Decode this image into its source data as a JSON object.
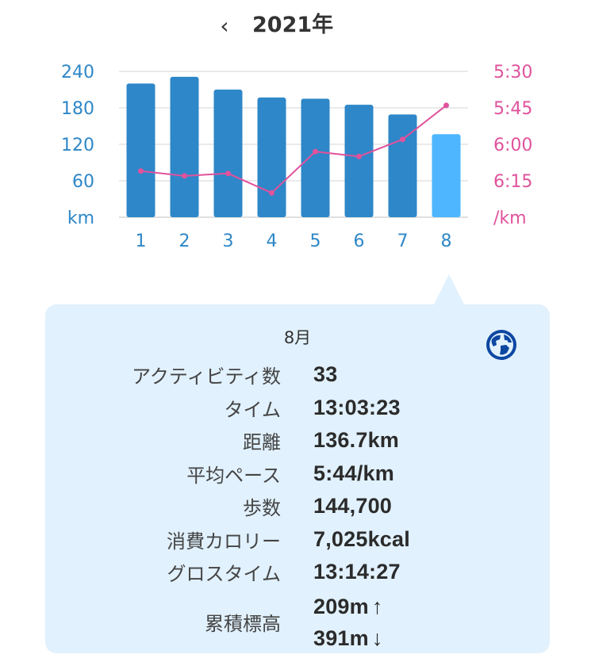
{
  "header": {
    "back_icon": "‹",
    "title": "2021年"
  },
  "colors": {
    "bar": "#2e87c8",
    "bar_selected": "#4db6ff",
    "line": "#e0529c",
    "left_axis": "#2e87c8",
    "right_axis": "#e0529c",
    "panel": "#e1f1fd"
  },
  "chart_data": {
    "type": "bar",
    "categories": [
      "1",
      "2",
      "3",
      "4",
      "5",
      "6",
      "7",
      "8"
    ],
    "series": [
      {
        "name": "km",
        "values": [
          220,
          231,
          210,
          197,
          195,
          185,
          169,
          136.7
        ]
      },
      {
        "name": "/km",
        "values": [
          "6:11",
          "6:13",
          "6:12",
          "6:20",
          "6:03",
          "6:05",
          "5:58",
          "5:44"
        ],
        "seconds": [
          371,
          373,
          372,
          380,
          363,
          365,
          358,
          344
        ]
      }
    ],
    "left_axis": {
      "unit": "km",
      "ticks": [
        "240",
        "180",
        "120",
        "60"
      ],
      "ylim": [
        0,
        240
      ]
    },
    "right_axis": {
      "unit": "/km",
      "ticks": [
        "5:30",
        "5:45",
        "6:00",
        "6:15"
      ],
      "range_seconds": [
        330,
        390
      ]
    },
    "selected_index": 7,
    "grid": true
  },
  "detail": {
    "month": "8月",
    "globe_icon": "globe-icon",
    "rows": [
      {
        "label": "アクティビティ数",
        "value": "33"
      },
      {
        "label": "タイム",
        "value": "13:03:23"
      },
      {
        "label": "距離",
        "value": "136.7km"
      },
      {
        "label": "平均ペース",
        "value": "5:44/km"
      },
      {
        "label": "歩数",
        "value": "144,700"
      },
      {
        "label": "消費カロリー",
        "value": "7,025kcal"
      },
      {
        "label": "グロスタイム",
        "value": "13:14:27"
      }
    ],
    "elevation": {
      "label": "累積標高",
      "up": "209m",
      "up_arrow": "↑",
      "down": "391m",
      "down_arrow": "↓"
    }
  }
}
